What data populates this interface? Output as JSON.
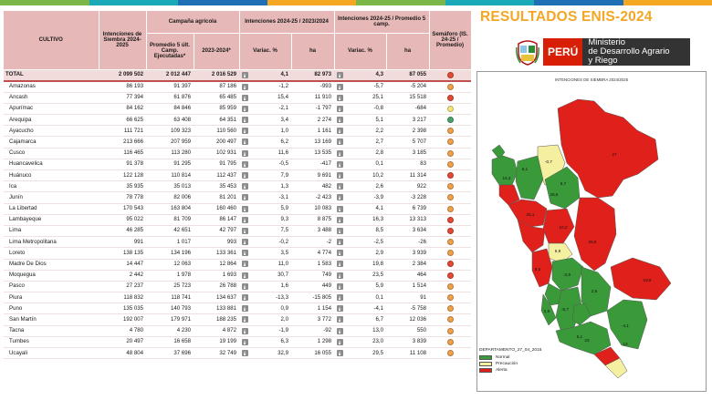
{
  "colors": {
    "header_bg": "#e6b8b7",
    "total_bg": "#f2dcdb",
    "title_orange": "#f5a623",
    "peru_red": "#d81e05",
    "ministry_dark": "#333333",
    "normal": "#3a9a3a",
    "precaucion": "#f5f0a0",
    "alerta": "#e0201a",
    "stripe": [
      "#7ab648",
      "#19a9b8",
      "#1f6fb5",
      "#f5a623",
      "#7ab648",
      "#19a9b8",
      "#1f6fb5",
      "#f5a623"
    ]
  },
  "header": {
    "cultivo": "CULTIVO",
    "intenciones": "Intenciones de Siembra 2024-2025",
    "campana": "Campaña agrícola",
    "promedio": "Promedio 5 últ. Camp. Ejecutadas*",
    "campaign_2324": "2023-2024*",
    "vs_2324": "Intenciones 2024-25 / 2023/2024",
    "vs_prom": "Intenciones 2024-25 / Promedio 5 camp.",
    "variac": "Variac. %",
    "ha": "ha",
    "semaforo": "Semáforo (IS. 24-25 / Promedio)"
  },
  "chart_data": {
    "type": "table",
    "columns": [
      "Cultivo",
      "Intenciones de Siembra 2024-2025",
      "Promedio 5 últ. Camp. Ejecutadas*",
      "2023-2024*",
      "Variac. % vs 2023/2024",
      "ha vs 2023/2024",
      "Variac. % vs Promedio",
      "ha vs Promedio",
      "Semáforo"
    ],
    "total": {
      "name": "TOTAL",
      "is": "2 099 502",
      "prom": "2 012 447",
      "c2324": "2 016 529",
      "v1": "4,1",
      "h1": "82 973",
      "v2": "4,3",
      "h2": "87 055",
      "sem": "red"
    },
    "rows": [
      {
        "name": "Amazonas",
        "is": "86 193",
        "prom": "91 397",
        "c2324": "87 186",
        "v1": "-1,2",
        "h1": "-993",
        "v2": "-5,7",
        "h2": "-5 204",
        "sem": "orange"
      },
      {
        "name": "Ancash",
        "is": "77 394",
        "prom": "61 876",
        "c2324": "65 485",
        "v1": "15,4",
        "h1": "11 910",
        "v2": "25,1",
        "h2": "15 518",
        "sem": "red"
      },
      {
        "name": "Apurímac",
        "is": "84 162",
        "prom": "84 846",
        "c2324": "85 959",
        "v1": "-2,1",
        "h1": "-1 797",
        "v2": "-0,8",
        "h2": "-684",
        "sem": "yellow"
      },
      {
        "name": "Arequipa",
        "is": "66 625",
        "prom": "63 408",
        "c2324": "64 351",
        "v1": "3,4",
        "h1": "2 274",
        "v2": "5,1",
        "h2": "3 217",
        "sem": "green"
      },
      {
        "name": "Ayacucho",
        "is": "111 721",
        "prom": "109 323",
        "c2324": "110 560",
        "v1": "1,0",
        "h1": "1 161",
        "v2": "2,2",
        "h2": "2 398",
        "sem": "orange"
      },
      {
        "name": "Cajamarca",
        "is": "213 666",
        "prom": "207 959",
        "c2324": "200 497",
        "v1": "6,2",
        "h1": "13 169",
        "v2": "2,7",
        "h2": "5 707",
        "sem": "orange"
      },
      {
        "name": "Cusco",
        "is": "116 465",
        "prom": "113 280",
        "c2324": "102 931",
        "v1": "11,6",
        "h1": "13 535",
        "v2": "2,8",
        "h2": "3 185",
        "sem": "orange"
      },
      {
        "name": "Huancavelica",
        "is": "91 378",
        "prom": "91 295",
        "c2324": "91 795",
        "v1": "-0,5",
        "h1": "-417",
        "v2": "0,1",
        "h2": "83",
        "sem": "orange"
      },
      {
        "name": "Huánuco",
        "is": "122 128",
        "prom": "110 814",
        "c2324": "112 437",
        "v1": "7,9",
        "h1": "9 691",
        "v2": "10,2",
        "h2": "11 314",
        "sem": "red"
      },
      {
        "name": "Ica",
        "is": "35 935",
        "prom": "35 013",
        "c2324": "35 453",
        "v1": "1,3",
        "h1": "482",
        "v2": "2,6",
        "h2": "922",
        "sem": "orange"
      },
      {
        "name": "Junín",
        "is": "78 778",
        "prom": "82 006",
        "c2324": "81 201",
        "v1": "-3,1",
        "h1": "-2 423",
        "v2": "-3,9",
        "h2": "-3 228",
        "sem": "orange"
      },
      {
        "name": "La Libertad",
        "is": "170 543",
        "prom": "163 804",
        "c2324": "160 460",
        "v1": "5,9",
        "h1": "10 083",
        "v2": "4,1",
        "h2": "6 739",
        "sem": "orange"
      },
      {
        "name": "Lambayeque",
        "is": "95 022",
        "prom": "81 709",
        "c2324": "86 147",
        "v1": "9,3",
        "h1": "8 875",
        "v2": "16,3",
        "h2": "13 313",
        "sem": "red"
      },
      {
        "name": "Lima",
        "is": "46 285",
        "prom": "42 651",
        "c2324": "42 797",
        "v1": "7,5",
        "h1": "3 488",
        "v2": "8,5",
        "h2": "3 634",
        "sem": "red"
      },
      {
        "name": "Lima Metropolitana",
        "is": "991",
        "prom": "1 017",
        "c2324": "993",
        "v1": "-0,2",
        "h1": "-2",
        "v2": "-2,5",
        "h2": "-26",
        "sem": "orange"
      },
      {
        "name": "Loreto",
        "is": "138 135",
        "prom": "134 196",
        "c2324": "133 361",
        "v1": "3,5",
        "h1": "4 774",
        "v2": "2,9",
        "h2": "3 939",
        "sem": "orange"
      },
      {
        "name": "Madre De Dios",
        "is": "14 447",
        "prom": "12 063",
        "c2324": "12 864",
        "v1": "11,0",
        "h1": "1 583",
        "v2": "19,8",
        "h2": "2 384",
        "sem": "red"
      },
      {
        "name": "Moquegua",
        "is": "2 442",
        "prom": "1 978",
        "c2324": "1 693",
        "v1": "30,7",
        "h1": "749",
        "v2": "23,5",
        "h2": "464",
        "sem": "red"
      },
      {
        "name": "Pasco",
        "is": "27 237",
        "prom": "25 723",
        "c2324": "26 788",
        "v1": "1,6",
        "h1": "449",
        "v2": "5,9",
        "h2": "1 514",
        "sem": "orange"
      },
      {
        "name": "Piura",
        "is": "118 832",
        "prom": "118 741",
        "c2324": "134 637",
        "v1": "-13,3",
        "h1": "-15 805",
        "v2": "0,1",
        "h2": "91",
        "sem": "orange"
      },
      {
        "name": "Puno",
        "is": "135 035",
        "prom": "140 793",
        "c2324": "133 881",
        "v1": "0,9",
        "h1": "1 154",
        "v2": "-4,1",
        "h2": "-5 758",
        "sem": "orange"
      },
      {
        "name": "San Martín",
        "is": "192 007",
        "prom": "179 971",
        "c2324": "188 235",
        "v1": "2,0",
        "h1": "3 772",
        "v2": "6,7",
        "h2": "12 036",
        "sem": "orange"
      },
      {
        "name": "Tacna",
        "is": "4 780",
        "prom": "4 230",
        "c2324": "4 872",
        "v1": "-1,9",
        "h1": "-92",
        "v2": "13,0",
        "h2": "550",
        "sem": "orange"
      },
      {
        "name": "Tumbes",
        "is": "20 497",
        "prom": "16 658",
        "c2324": "19 199",
        "v1": "6,3",
        "h1": "1 298",
        "v2": "23,0",
        "h2": "3 839",
        "sem": "orange"
      },
      {
        "name": "Ucayali",
        "is": "48 804",
        "prom": "37 696",
        "c2324": "32 749",
        "v1": "32,9",
        "h1": "16 055",
        "v2": "29,5",
        "h2": "11 108",
        "sem": "orange"
      }
    ],
    "semaforo_colors": {
      "red": "#e34a33",
      "orange": "#f0a24a",
      "yellow": "#f3e77a",
      "green": "#4aa06a"
    }
  },
  "right_panel": {
    "title": "RESULTADOS ENIS-2024",
    "peru": "PERÚ",
    "ministry_lines": [
      "Ministerio",
      "de Desarrollo Agrario",
      "y Riego"
    ],
    "map_title": "INTENCIONES DE SIEMBRA 2024/2025",
    "legend": {
      "title": "DEPARTAMENTO_27_04_2015",
      "items": [
        {
          "label": "Normal",
          "color": "#3a9a3a"
        },
        {
          "label": "Precaución",
          "color": "#f5f0a0"
        },
        {
          "label": "Alerta",
          "color": "#e0201a"
        }
      ]
    },
    "map_values": [
      "27",
      "-0,7",
      "6,1",
      "16,3",
      "26,5",
      "6,7",
      "25,1",
      "10,2",
      "-3,9",
      "29,5",
      "8,5",
      "2,6",
      "19,8",
      "2,8",
      "-5,7",
      "-4,1",
      "13",
      "23",
      "5,9",
      "5,1"
    ]
  }
}
